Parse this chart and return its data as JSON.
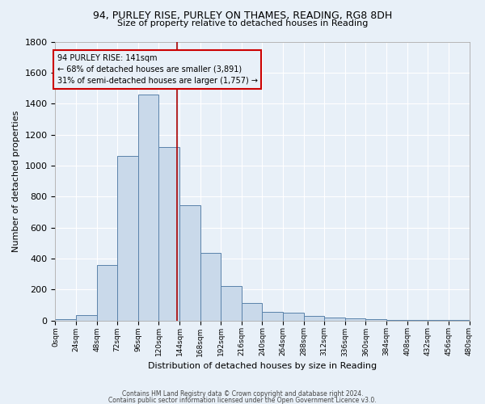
{
  "title1": "94, PURLEY RISE, PURLEY ON THAMES, READING, RG8 8DH",
  "title2": "Size of property relative to detached houses in Reading",
  "xlabel": "Distribution of detached houses by size in Reading",
  "ylabel": "Number of detached properties",
  "footnote1": "Contains HM Land Registry data © Crown copyright and database right 2024.",
  "footnote2": "Contains public sector information licensed under the Open Government Licence v3.0.",
  "bin_edges": [
    0,
    24,
    48,
    72,
    96,
    120,
    144,
    168,
    192,
    216,
    240,
    264,
    288,
    312,
    336,
    360,
    384,
    408,
    432,
    456,
    480
  ],
  "counts": [
    10,
    35,
    355,
    1060,
    1460,
    1120,
    745,
    435,
    220,
    110,
    55,
    50,
    30,
    18,
    12,
    8,
    5,
    4,
    3,
    2
  ],
  "property_size": 141,
  "annotation_title": "94 PURLEY RISE: 141sqm",
  "annotation_line1": "← 68% of detached houses are smaller (3,891)",
  "annotation_line2": "31% of semi-detached houses are larger (1,757) →",
  "bar_facecolor": "#c9d9ea",
  "bar_edgecolor": "#5a82aa",
  "vline_color": "#aa0000",
  "bg_color": "#e8f0f8",
  "grid_color": "#ffffff",
  "annotation_box_edgecolor": "#cc0000",
  "ylim": [
    0,
    1800
  ],
  "xlim": [
    0,
    480
  ],
  "yticks": [
    0,
    200,
    400,
    600,
    800,
    1000,
    1200,
    1400,
    1600,
    1800
  ]
}
